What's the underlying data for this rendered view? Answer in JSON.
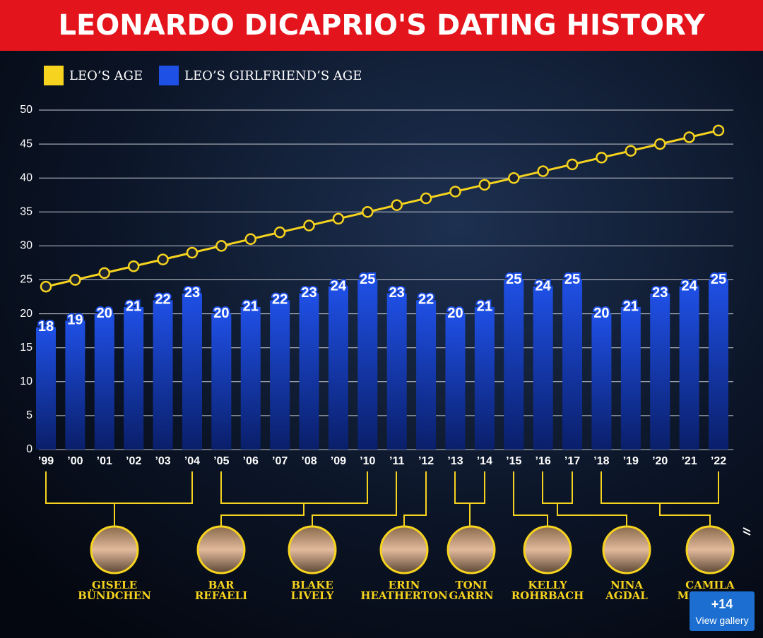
{
  "chart_data": {
    "type": "bar",
    "title": "LEONARDO DICAPRIO'S DATING HISTORY",
    "categories": [
      "’99",
      "’00",
      "’01",
      "’02",
      "’03",
      "’04",
      "’05",
      "’06",
      "’07",
      "’08",
      "’09",
      "’10",
      "’11",
      "’12",
      "’13",
      "’14",
      "’15",
      "’16",
      "’17",
      "’18",
      "’19",
      "’20",
      "’21",
      "’22"
    ],
    "series": [
      {
        "name": "LEO’S AGE",
        "type": "line",
        "color": "#f6d31e",
        "values": [
          24,
          25,
          26,
          27,
          28,
          29,
          30,
          31,
          32,
          33,
          34,
          35,
          36,
          37,
          38,
          39,
          40,
          41,
          42,
          43,
          44,
          45,
          46,
          47
        ]
      },
      {
        "name": "LEO’S GIRLFRIEND’S AGE",
        "type": "bar",
        "color": "#1f50e6",
        "values": [
          18,
          19,
          20,
          21,
          22,
          23,
          20,
          21,
          22,
          23,
          24,
          25,
          23,
          22,
          20,
          21,
          25,
          24,
          25,
          20,
          21,
          23,
          24,
          25
        ]
      }
    ],
    "ylim": [
      0,
      50
    ],
    "yticks": [
      0,
      5,
      10,
      15,
      20,
      25,
      30,
      35,
      40,
      45,
      50
    ],
    "grid": true
  },
  "people": [
    [
      "GISELE",
      "BÜNDCHEN"
    ],
    [
      "BAR",
      "REFAELI"
    ],
    [
      "BLAKE",
      "LIVELY"
    ],
    [
      "ERIN",
      "HEATHERTON"
    ],
    [
      "TONI",
      "GARRN"
    ],
    [
      "KELLY",
      "ROHRBACH"
    ],
    [
      "NINA",
      "AGDAL"
    ],
    [
      "CAMILA",
      "MORRONE"
    ]
  ],
  "gallery": {
    "count": "+14",
    "label": "View gallery"
  }
}
